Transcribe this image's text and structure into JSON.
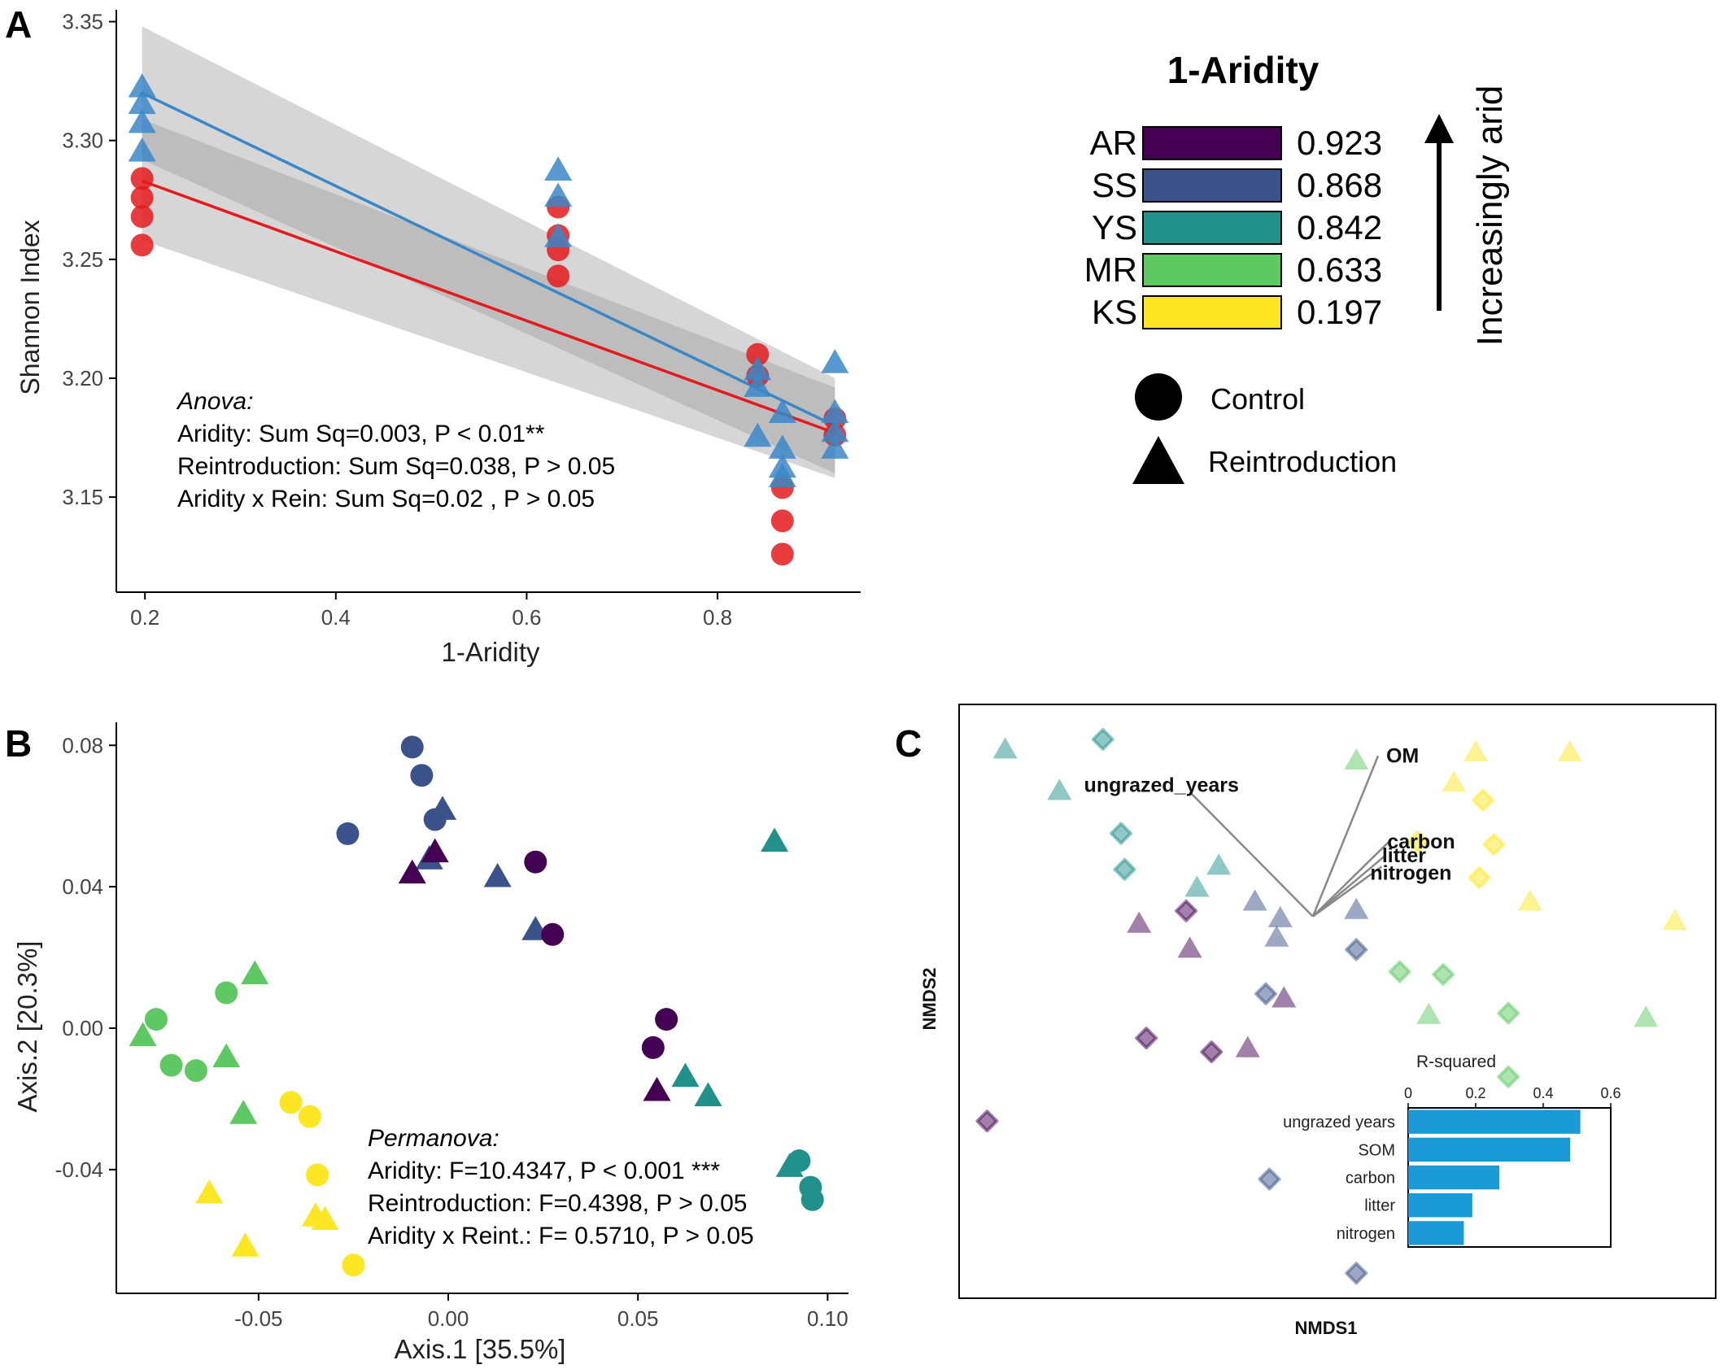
{
  "colors": {
    "control": "#e41a1c",
    "reintroduction": "#3a87c8",
    "AR": "#440154",
    "SS": "#3b528b",
    "YS": "#21918c",
    "MR": "#5ec962",
    "KS": "#fde725",
    "bar": "#1a9bd7"
  },
  "chart_data": [
    {
      "panel": "A",
      "type": "scatter",
      "title": "",
      "xlabel": "1-Aridity",
      "ylabel": "Shannon Index",
      "xlim": [
        0.17,
        0.95
      ],
      "ylim": [
        3.11,
        3.355
      ],
      "x_ticks": [
        0.2,
        0.4,
        0.6,
        0.8
      ],
      "x_tick_labels": [
        "0.2",
        "0.4",
        "0.6",
        "0.8"
      ],
      "y_ticks": [
        3.15,
        3.2,
        3.25,
        3.3,
        3.35
      ],
      "y_tick_labels": [
        "3.15",
        "3.20",
        "3.25",
        "3.30",
        "3.35"
      ],
      "series": [
        {
          "shape": "circle",
          "color_key": "control",
          "points": [
            [
              0.197,
              3.284
            ],
            [
              0.197,
              3.276
            ],
            [
              0.197,
              3.268
            ],
            [
              0.197,
              3.256
            ],
            [
              0.633,
              3.272
            ],
            [
              0.633,
              3.26
            ],
            [
              0.633,
              3.254
            ],
            [
              0.633,
              3.243
            ],
            [
              0.842,
              3.21
            ],
            [
              0.842,
              3.201
            ],
            [
              0.868,
              3.154
            ],
            [
              0.868,
              3.14
            ],
            [
              0.868,
              3.126
            ],
            [
              0.923,
              3.183
            ],
            [
              0.923,
              3.176
            ]
          ],
          "fit": {
            "x1": 0.197,
            "y1": 3.283,
            "x2": 0.923,
            "y2": 3.177,
            "ci_lo1": 3.258,
            "ci_hi1": 3.309,
            "ci_lo2": 3.158,
            "ci_hi2": 3.196
          }
        },
        {
          "shape": "triangle",
          "color_key": "reintroduction",
          "points": [
            [
              0.197,
              3.322
            ],
            [
              0.197,
              3.315
            ],
            [
              0.197,
              3.307
            ],
            [
              0.197,
              3.295
            ],
            [
              0.633,
              3.287
            ],
            [
              0.633,
              3.276
            ],
            [
              0.633,
              3.259
            ],
            [
              0.842,
              3.203
            ],
            [
              0.842,
              3.196
            ],
            [
              0.842,
              3.175
            ],
            [
              0.868,
              3.185
            ],
            [
              0.868,
              3.17
            ],
            [
              0.868,
              3.162
            ],
            [
              0.868,
              3.158
            ],
            [
              0.923,
              3.206
            ],
            [
              0.923,
              3.185
            ],
            [
              0.923,
              3.177
            ],
            [
              0.923,
              3.17
            ]
          ],
          "fit": {
            "x1": 0.197,
            "y1": 3.32,
            "x2": 0.923,
            "y2": 3.18,
            "ci_lo1": 3.292,
            "ci_hi1": 3.348,
            "ci_lo2": 3.16,
            "ci_hi2": 3.2
          }
        }
      ],
      "annotation": {
        "title": "Anova:",
        "lines": [
          "Aridity: Sum Sq=0.003, P < 0.01**",
          "Reintroduction: Sum Sq=0.038, P > 0.05",
          "Aridity x Rein: Sum Sq=0.02 ,  P > 0.05"
        ]
      }
    },
    {
      "panel": "B",
      "type": "scatter",
      "title": "",
      "xlabel": "Axis.1   [35.5%]",
      "ylabel": "Axis.2   [20.3%]",
      "xlim": [
        -0.0875,
        0.1055
      ],
      "ylim": [
        -0.075,
        0.0865
      ],
      "x_ticks": [
        -0.05,
        0.0,
        0.05,
        0.1
      ],
      "x_tick_labels": [
        "-0.05",
        "0.00",
        "0.05",
        "0.10"
      ],
      "y_ticks": [
        -0.04,
        0.0,
        0.04,
        0.08
      ],
      "y_tick_labels": [
        "-0.04",
        "0.00",
        "0.04",
        "0.08"
      ],
      "points": [
        {
          "x": -0.0095,
          "y": 0.0795,
          "site": "SS",
          "shape": "circle"
        },
        {
          "x": -0.007,
          "y": 0.0715,
          "site": "SS",
          "shape": "circle"
        },
        {
          "x": -0.0035,
          "y": 0.059,
          "site": "SS",
          "shape": "circle"
        },
        {
          "x": -0.0265,
          "y": 0.055,
          "site": "SS",
          "shape": "circle"
        },
        {
          "x": -0.0015,
          "y": 0.0615,
          "site": "SS",
          "shape": "triangle"
        },
        {
          "x": -0.005,
          "y": 0.0475,
          "site": "SS",
          "shape": "triangle"
        },
        {
          "x": 0.013,
          "y": 0.0425,
          "site": "SS",
          "shape": "triangle"
        },
        {
          "x": 0.023,
          "y": 0.0275,
          "site": "SS",
          "shape": "triangle"
        },
        {
          "x": -0.0035,
          "y": 0.0495,
          "site": "AR",
          "shape": "triangle"
        },
        {
          "x": -0.0095,
          "y": 0.0435,
          "site": "AR",
          "shape": "triangle"
        },
        {
          "x": 0.023,
          "y": 0.047,
          "site": "AR",
          "shape": "circle"
        },
        {
          "x": 0.0275,
          "y": 0.0265,
          "site": "AR",
          "shape": "circle"
        },
        {
          "x": 0.0575,
          "y": 0.0025,
          "site": "AR",
          "shape": "circle"
        },
        {
          "x": 0.054,
          "y": -0.0055,
          "site": "AR",
          "shape": "circle"
        },
        {
          "x": 0.055,
          "y": -0.018,
          "site": "AR",
          "shape": "triangle"
        },
        {
          "x": 0.086,
          "y": 0.0525,
          "site": "YS",
          "shape": "triangle"
        },
        {
          "x": 0.0625,
          "y": -0.014,
          "site": "YS",
          "shape": "triangle"
        },
        {
          "x": 0.0685,
          "y": -0.0195,
          "site": "YS",
          "shape": "triangle"
        },
        {
          "x": 0.09,
          "y": -0.0395,
          "site": "YS",
          "shape": "triangle"
        },
        {
          "x": 0.0925,
          "y": -0.0375,
          "site": "YS",
          "shape": "circle"
        },
        {
          "x": 0.0955,
          "y": -0.045,
          "site": "YS",
          "shape": "circle"
        },
        {
          "x": 0.096,
          "y": -0.0485,
          "site": "YS",
          "shape": "circle"
        },
        {
          "x": -0.077,
          "y": 0.0025,
          "site": "MR",
          "shape": "circle"
        },
        {
          "x": -0.073,
          "y": -0.0105,
          "site": "MR",
          "shape": "circle"
        },
        {
          "x": -0.0665,
          "y": -0.012,
          "site": "MR",
          "shape": "circle"
        },
        {
          "x": -0.0585,
          "y": 0.01,
          "site": "MR",
          "shape": "circle"
        },
        {
          "x": -0.051,
          "y": 0.015,
          "site": "MR",
          "shape": "triangle"
        },
        {
          "x": -0.0805,
          "y": -0.0025,
          "site": "MR",
          "shape": "triangle"
        },
        {
          "x": -0.0585,
          "y": -0.0085,
          "site": "MR",
          "shape": "triangle"
        },
        {
          "x": -0.054,
          "y": -0.0245,
          "site": "MR",
          "shape": "triangle"
        },
        {
          "x": -0.0415,
          "y": -0.021,
          "site": "KS",
          "shape": "circle"
        },
        {
          "x": -0.0365,
          "y": -0.025,
          "site": "KS",
          "shape": "circle"
        },
        {
          "x": -0.0345,
          "y": -0.0415,
          "site": "KS",
          "shape": "circle"
        },
        {
          "x": -0.025,
          "y": -0.067,
          "site": "KS",
          "shape": "circle"
        },
        {
          "x": -0.035,
          "y": -0.0535,
          "site": "KS",
          "shape": "triangle"
        },
        {
          "x": -0.0325,
          "y": -0.0545,
          "site": "KS",
          "shape": "triangle"
        },
        {
          "x": -0.063,
          "y": -0.047,
          "site": "KS",
          "shape": "triangle"
        },
        {
          "x": -0.0535,
          "y": -0.062,
          "site": "KS",
          "shape": "triangle"
        }
      ],
      "annotation": {
        "title": "Permanova:",
        "lines": [
          "Aridity: F=10.4347, P < 0.001 ***",
          "Reintroduction: F=0.4398, P > 0.05",
          "Aridity x Reint.: F= 0.5710, P > 0.05"
        ]
      }
    },
    {
      "panel": "C",
      "type": "scatter",
      "title": "",
      "xlabel": "NMDS1",
      "ylabel": "NMDS2",
      "xlim": [
        0,
        100
      ],
      "ylim": [
        0,
        100
      ],
      "points": [
        {
          "x": 4.0,
          "y": 95.5,
          "site": "YS",
          "shape": "triangle"
        },
        {
          "x": 11.5,
          "y": 88.0,
          "site": "YS",
          "shape": "triangle"
        },
        {
          "x": 17.5,
          "y": 97.5,
          "site": "YS",
          "shape": "circle"
        },
        {
          "x": 20.0,
          "y": 80.5,
          "site": "YS",
          "shape": "circle"
        },
        {
          "x": 20.5,
          "y": 74.0,
          "site": "YS",
          "shape": "circle"
        },
        {
          "x": 33.5,
          "y": 74.5,
          "site": "YS",
          "shape": "triangle"
        },
        {
          "x": 30.5,
          "y": 70.5,
          "site": "YS",
          "shape": "triangle"
        },
        {
          "x": 52.5,
          "y": 93.5,
          "site": "MR",
          "shape": "triangle"
        },
        {
          "x": 58.5,
          "y": 55.5,
          "site": "MR",
          "shape": "circle"
        },
        {
          "x": 64.5,
          "y": 55.0,
          "site": "MR",
          "shape": "circle"
        },
        {
          "x": 62.5,
          "y": 47.5,
          "site": "MR",
          "shape": "triangle"
        },
        {
          "x": 73.5,
          "y": 48.0,
          "site": "MR",
          "shape": "circle"
        },
        {
          "x": 73.5,
          "y": 36.5,
          "site": "MR",
          "shape": "circle"
        },
        {
          "x": 92.5,
          "y": 47.0,
          "site": "MR",
          "shape": "triangle"
        },
        {
          "x": 69.0,
          "y": 95.0,
          "site": "KS",
          "shape": "triangle"
        },
        {
          "x": 82.0,
          "y": 95.0,
          "site": "KS",
          "shape": "triangle"
        },
        {
          "x": 66.0,
          "y": 89.5,
          "site": "KS",
          "shape": "triangle"
        },
        {
          "x": 70.0,
          "y": 86.5,
          "site": "KS",
          "shape": "circle"
        },
        {
          "x": 71.5,
          "y": 78.5,
          "site": "KS",
          "shape": "circle"
        },
        {
          "x": 69.5,
          "y": 72.5,
          "site": "KS",
          "shape": "circle"
        },
        {
          "x": 76.5,
          "y": 68.0,
          "site": "KS",
          "shape": "triangle"
        },
        {
          "x": 96.5,
          "y": 64.5,
          "site": "KS",
          "shape": "triangle"
        },
        {
          "x": 61.0,
          "y": 79.0,
          "site": "KS",
          "shape": "circle"
        },
        {
          "x": 38.5,
          "y": 68.0,
          "site": "SS",
          "shape": "triangle"
        },
        {
          "x": 42.0,
          "y": 65.0,
          "site": "SS",
          "shape": "triangle"
        },
        {
          "x": 41.5,
          "y": 61.5,
          "site": "SS",
          "shape": "triangle"
        },
        {
          "x": 52.5,
          "y": 66.5,
          "site": "SS",
          "shape": "triangle"
        },
        {
          "x": 52.5,
          "y": 59.5,
          "site": "SS",
          "shape": "circle"
        },
        {
          "x": 40.0,
          "y": 51.5,
          "site": "SS",
          "shape": "circle"
        },
        {
          "x": 40.5,
          "y": 18.0,
          "site": "SS",
          "shape": "circle"
        },
        {
          "x": 52.5,
          "y": 1.0,
          "site": "SS",
          "shape": "circle"
        },
        {
          "x": 22.5,
          "y": 64.0,
          "site": "AR",
          "shape": "triangle"
        },
        {
          "x": 29.0,
          "y": 66.5,
          "site": "AR",
          "shape": "circle"
        },
        {
          "x": 29.5,
          "y": 59.5,
          "site": "AR",
          "shape": "triangle"
        },
        {
          "x": 42.5,
          "y": 50.5,
          "site": "AR",
          "shape": "triangle"
        },
        {
          "x": 23.5,
          "y": 43.5,
          "site": "AR",
          "shape": "circle"
        },
        {
          "x": 32.5,
          "y": 41.0,
          "site": "AR",
          "shape": "circle"
        },
        {
          "x": 37.5,
          "y": 41.5,
          "site": "AR",
          "shape": "triangle"
        },
        {
          "x": 1.5,
          "y": 28.5,
          "site": "AR",
          "shape": "circle"
        }
      ],
      "vectors": {
        "origin": [
          46.5,
          65.5
        ],
        "arrows": [
          {
            "label": "ungrazed_years",
            "x": 29.5,
            "y": 88.0
          },
          {
            "label": "OM",
            "x": 55.5,
            "y": 94.5
          },
          {
            "label": "carbon",
            "x": 57.0,
            "y": 79.0
          },
          {
            "label": "litter",
            "x": 56.5,
            "y": 76.5
          },
          {
            "label": "nitrogen",
            "x": 56.0,
            "y": 74.5
          }
        ]
      },
      "inset": {
        "type": "bar",
        "orientation": "horizontal",
        "title": "R-squared",
        "xlim": [
          0,
          0.6
        ],
        "x_ticks": [
          0,
          0.2,
          0.4,
          0.6
        ],
        "x_tick_labels": [
          "0",
          "0.2",
          "0.4",
          "0.6"
        ],
        "categories": [
          "ungrazed years",
          "SOM",
          "carbon",
          "litter",
          "nitrogen"
        ],
        "values": [
          0.51,
          0.48,
          0.27,
          0.19,
          0.165
        ]
      }
    }
  ],
  "panel_labels": {
    "A": "A",
    "B": "B",
    "C": "C"
  },
  "legend": {
    "title": "1-Aridity",
    "sites": [
      {
        "code": "AR",
        "value": "0.923",
        "color_key": "AR"
      },
      {
        "code": "SS",
        "value": "0.868",
        "color_key": "SS"
      },
      {
        "code": "YS",
        "value": "0.842",
        "color_key": "YS"
      },
      {
        "code": "MR",
        "value": "0.633",
        "color_key": "MR"
      },
      {
        "code": "KS",
        "value": "0.197",
        "color_key": "KS"
      }
    ],
    "arrow_label": "Increasingly arid",
    "shapes": [
      {
        "shape": "circle",
        "label": "Control"
      },
      {
        "shape": "triangle",
        "label": "Reintroduction"
      }
    ]
  }
}
